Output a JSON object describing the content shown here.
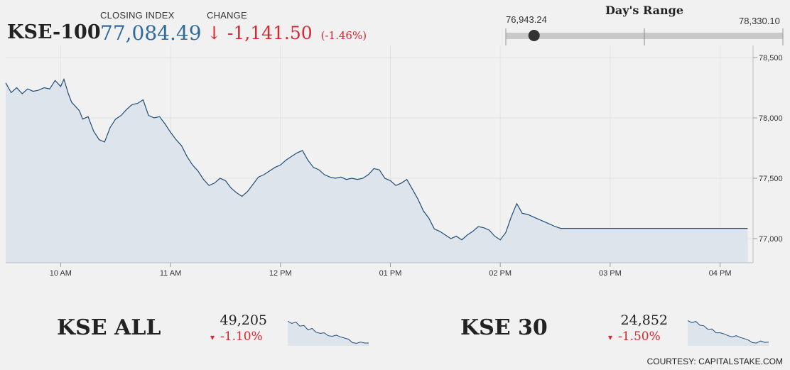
{
  "header": {
    "index_name": "KSE-100",
    "closing_caption": "CLOSING INDEX",
    "closing_value": "77,084.49",
    "change_caption": "CHANGE",
    "change_arrow": "↓",
    "change_value": "-1,141.50",
    "change_percent": "(-1.46%)"
  },
  "days_range": {
    "caption": "Day's Range",
    "low_label": "76,943.24",
    "high_label": "78,330.10",
    "low": 76943.24,
    "high": 78330.1,
    "current": 77084.49
  },
  "chart_data": {
    "type": "area",
    "x_tick_labels": [
      "10 AM",
      "11 AM",
      "12 PM",
      "01 PM",
      "02 PM",
      "03 PM",
      "04 PM"
    ],
    "y_tick_labels": [
      "78,500",
      "78,000",
      "77,500",
      "77,000"
    ],
    "y_ticks": [
      78500,
      78000,
      77500,
      77000
    ],
    "ylim": [
      76800,
      78600
    ],
    "x_hours_range": [
      9.5,
      16.3
    ],
    "series": [
      {
        "x": [
          9.5,
          9.55,
          9.6,
          9.65,
          9.7,
          9.75,
          9.8,
          9.85,
          9.9,
          9.95,
          10.0,
          10.03,
          10.07,
          10.1,
          10.17,
          10.2,
          10.25,
          10.3,
          10.35,
          10.4,
          10.45,
          10.5,
          10.55,
          10.6,
          10.65,
          10.7,
          10.75,
          10.8,
          10.85,
          10.9,
          10.95,
          11.0,
          11.05,
          11.1,
          11.15,
          11.2,
          11.25,
          11.3,
          11.35,
          11.4,
          11.45,
          11.5,
          11.55,
          11.6,
          11.65,
          11.7,
          11.75,
          11.8,
          11.85,
          11.9,
          11.95,
          12.0,
          12.05,
          12.1,
          12.15,
          12.2,
          12.25,
          12.3,
          12.35,
          12.4,
          12.45,
          12.5,
          12.55,
          12.6,
          12.65,
          12.7,
          12.75,
          12.8,
          12.85,
          12.9,
          12.95,
          13.0,
          13.05,
          13.1,
          13.15,
          13.2,
          13.25,
          13.3,
          13.35,
          13.4,
          13.45,
          13.5,
          13.55,
          13.6,
          13.65,
          13.7,
          13.75,
          13.8,
          13.85,
          13.9,
          13.95,
          14.0,
          14.05,
          14.1,
          14.15,
          14.2,
          14.25,
          14.3,
          14.35,
          14.4,
          14.45,
          14.5,
          14.55,
          14.6,
          14.65,
          14.7,
          14.75,
          14.8,
          14.85,
          14.9,
          14.95,
          15.0,
          15.05,
          15.1,
          15.15,
          15.2,
          15.25,
          15.3,
          15.35,
          15.4,
          15.45,
          15.5,
          15.55,
          15.6,
          15.65,
          15.7,
          15.75,
          15.8,
          15.85,
          15.9,
          15.95,
          16.0,
          16.05,
          16.1,
          16.15,
          16.2,
          16.25
        ],
        "values": [
          78290,
          78210,
          78250,
          78200,
          78240,
          78220,
          78230,
          78250,
          78240,
          78310,
          78260,
          78320,
          78200,
          78130,
          78060,
          77990,
          78010,
          77890,
          77820,
          77800,
          77920,
          77990,
          78020,
          78070,
          78110,
          78120,
          78150,
          78020,
          78000,
          78010,
          77950,
          77880,
          77820,
          77770,
          77680,
          77610,
          77560,
          77490,
          77440,
          77460,
          77500,
          77480,
          77420,
          77380,
          77350,
          77390,
          77450,
          77510,
          77530,
          77560,
          77590,
          77610,
          77650,
          77680,
          77710,
          77730,
          77650,
          77590,
          77570,
          77530,
          77510,
          77500,
          77510,
          77490,
          77500,
          77490,
          77500,
          77530,
          77580,
          77570,
          77500,
          77480,
          77440,
          77460,
          77490,
          77410,
          77330,
          77230,
          77170,
          77080,
          77060,
          77030,
          77000,
          77020,
          76990,
          77030,
          77060,
          77100,
          77090,
          77070,
          77020,
          76990,
          77050,
          77180,
          77290,
          77210,
          77200,
          77180,
          77160,
          77140,
          77120,
          77100,
          77084.49,
          77084.49,
          77084.49,
          77084.49,
          77084.49,
          77084.49,
          77084.49,
          77084.49,
          77084.49,
          77084.49,
          77084.49,
          77084.49,
          77084.49,
          77084.49,
          77084.49,
          77084.49,
          77084.49,
          77084.49,
          77084.49,
          77084.49,
          77084.49,
          77084.49,
          77084.49,
          77084.49,
          77084.49,
          77084.49,
          77084.49,
          77084.49,
          77084.49,
          77084.49,
          77084.49,
          77084.49,
          77084.49,
          77084.49,
          77084.49
        ]
      }
    ]
  },
  "bottom": {
    "kse_all": {
      "name": "KSE ALL",
      "value": "49,205",
      "arrow": "▾",
      "change": "-1.10%"
    },
    "kse_30": {
      "name": "KSE 30",
      "value": "24,852",
      "arrow": "▾",
      "change": "-1.50%"
    }
  },
  "sparklines": {
    "kse_all": [
      0.8,
      0.72,
      0.77,
      0.63,
      0.65,
      0.5,
      0.55,
      0.42,
      0.38,
      0.4,
      0.3,
      0.28,
      0.32,
      0.26,
      0.22,
      0.18,
      0.06,
      0.04,
      0.08,
      0.05,
      0.05
    ],
    "kse_30": [
      0.82,
      0.75,
      0.79,
      0.66,
      0.64,
      0.52,
      0.53,
      0.4,
      0.4,
      0.36,
      0.3,
      0.26,
      0.3,
      0.24,
      0.2,
      0.15,
      0.06,
      0.05,
      0.12,
      0.07,
      0.08
    ]
  },
  "footer": {
    "courtesy": "COURTESY: CAPITALSTAKE.COM"
  },
  "colors": {
    "line": "#1f4e7a",
    "fill": "#dde4ec",
    "down": "#d9262f",
    "index_value": "#2e6a9e"
  }
}
